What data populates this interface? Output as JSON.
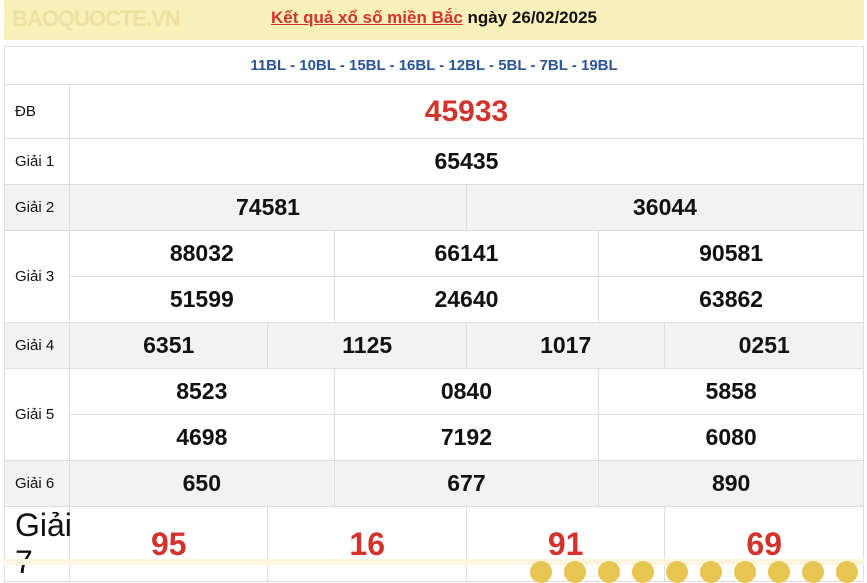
{
  "header": {
    "link": "Kết quả xổ số miền Bắc",
    "date_text": " ngày 26/02/2025"
  },
  "codes": "11BL - 10BL - 15BL - 16BL - 12BL - 5BL - 7BL - 19BL",
  "prizes": {
    "db": {
      "label": "ĐB",
      "values": [
        "45933"
      ]
    },
    "g1": {
      "label": "Giải 1",
      "values": [
        "65435"
      ]
    },
    "g2": {
      "label": "Giải 2",
      "values": [
        "74581",
        "36044"
      ]
    },
    "g3": {
      "label": "Giải 3",
      "values": [
        "88032",
        "66141",
        "90581",
        "51599",
        "24640",
        "63862"
      ]
    },
    "g4": {
      "label": "Giải 4",
      "values": [
        "6351",
        "1125",
        "1017",
        "0251"
      ]
    },
    "g5": {
      "label": "Giải 5",
      "values": [
        "8523",
        "0840",
        "5858",
        "4698",
        "7192",
        "6080"
      ]
    },
    "g6": {
      "label": "Giải 6",
      "values": [
        "650",
        "677",
        "890"
      ]
    },
    "g7": {
      "label": "Giải 7",
      "values": [
        "95",
        "16",
        "91",
        "69"
      ]
    }
  },
  "watermark": "BAOQUOCTE.VN",
  "colors": {
    "accent": "#d0342c",
    "codes": "#2a5496",
    "header_bg": "#faf0b9"
  }
}
